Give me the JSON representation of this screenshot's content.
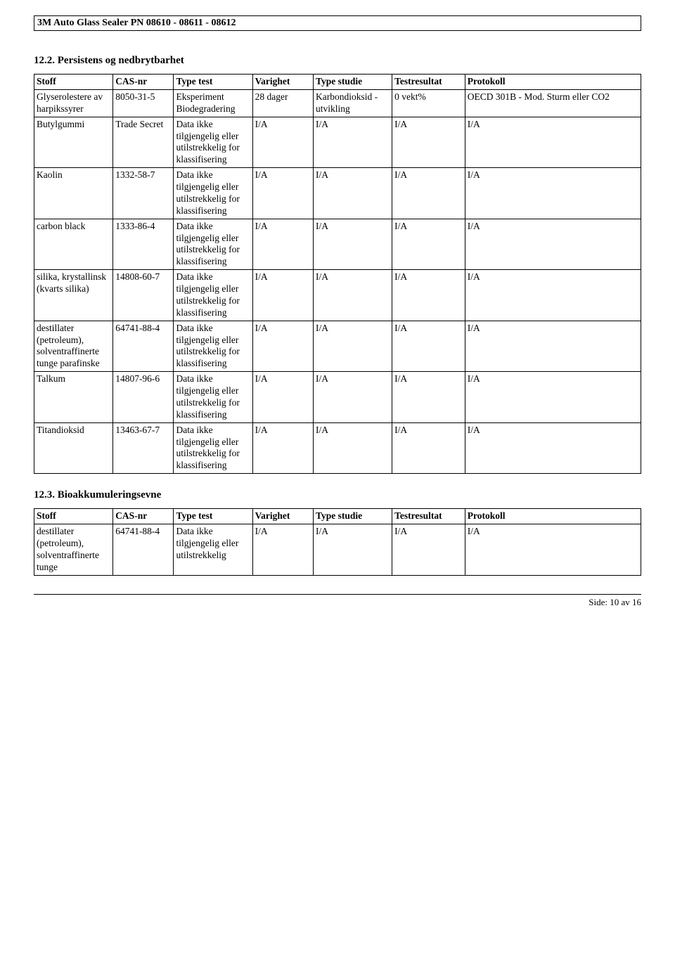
{
  "header": "3M Auto Glass Sealer PN 08610 - 08611 - 08612",
  "section122": {
    "title": "12.2. Persistens og nedbrytbarhet",
    "columns": [
      "Stoff",
      "CAS-nr",
      "Type test",
      "Varighet",
      "Type studie",
      "Testresultat",
      "Protokoll"
    ],
    "rows": [
      {
        "c": [
          "Glyserolestere av harpikssyrer",
          "8050-31-5",
          "Eksperiment Biodegradering",
          "28 dager",
          "Karbondioksid -utvikling",
          "0 vekt%",
          "OECD 301B - Mod. Sturm eller CO2"
        ]
      },
      {
        "c": [
          "Butylgummi",
          "Trade Secret",
          "Data ikke tilgjengelig eller utilstrekkelig for klassifisering",
          "I/A",
          "I/A",
          "I/A",
          "I/A"
        ]
      },
      {
        "c": [
          "Kaolin",
          "1332-58-7",
          "Data ikke tilgjengelig eller utilstrekkelig for klassifisering",
          "I/A",
          "I/A",
          "I/A",
          "I/A"
        ]
      },
      {
        "c": [
          "carbon black",
          "1333-86-4",
          "Data ikke tilgjengelig eller utilstrekkelig for klassifisering",
          "I/A",
          "I/A",
          "I/A",
          "I/A"
        ]
      },
      {
        "c": [
          "silika, krystallinsk (kvarts silika)",
          "14808-60-7",
          "Data ikke tilgjengelig eller utilstrekkelig for klassifisering",
          "I/A",
          "I/A",
          "I/A",
          "I/A"
        ]
      },
      {
        "c": [
          "destillater (petroleum), solventraffinerte tunge parafinske",
          "64741-88-4",
          "Data ikke tilgjengelig eller utilstrekkelig for klassifisering",
          "I/A",
          "I/A",
          "I/A",
          "I/A"
        ]
      },
      {
        "c": [
          "Talkum",
          "14807-96-6",
          "Data ikke tilgjengelig eller utilstrekkelig for klassifisering",
          "I/A",
          "I/A",
          "I/A",
          "I/A"
        ]
      },
      {
        "c": [
          "Titandioksid",
          "13463-67-7",
          "Data ikke tilgjengelig eller utilstrekkelig for klassifisering",
          "I/A",
          "I/A",
          "I/A",
          "I/A"
        ]
      }
    ]
  },
  "section123": {
    "title": "12.3. Bioakkumuleringsevne",
    "columns": [
      "Stoff",
      "CAS-nr",
      "Type test",
      "Varighet",
      "Type studie",
      "Testresultat",
      "Protokoll"
    ],
    "rows": [
      {
        "c": [
          "destillater (petroleum), solventraffinerte tunge",
          "64741-88-4",
          "Data ikke tilgjengelig eller utilstrekkelig",
          "I/A",
          "I/A",
          "I/A",
          "I/A"
        ]
      }
    ]
  },
  "footer": {
    "page": "Side: 10 av  16"
  }
}
